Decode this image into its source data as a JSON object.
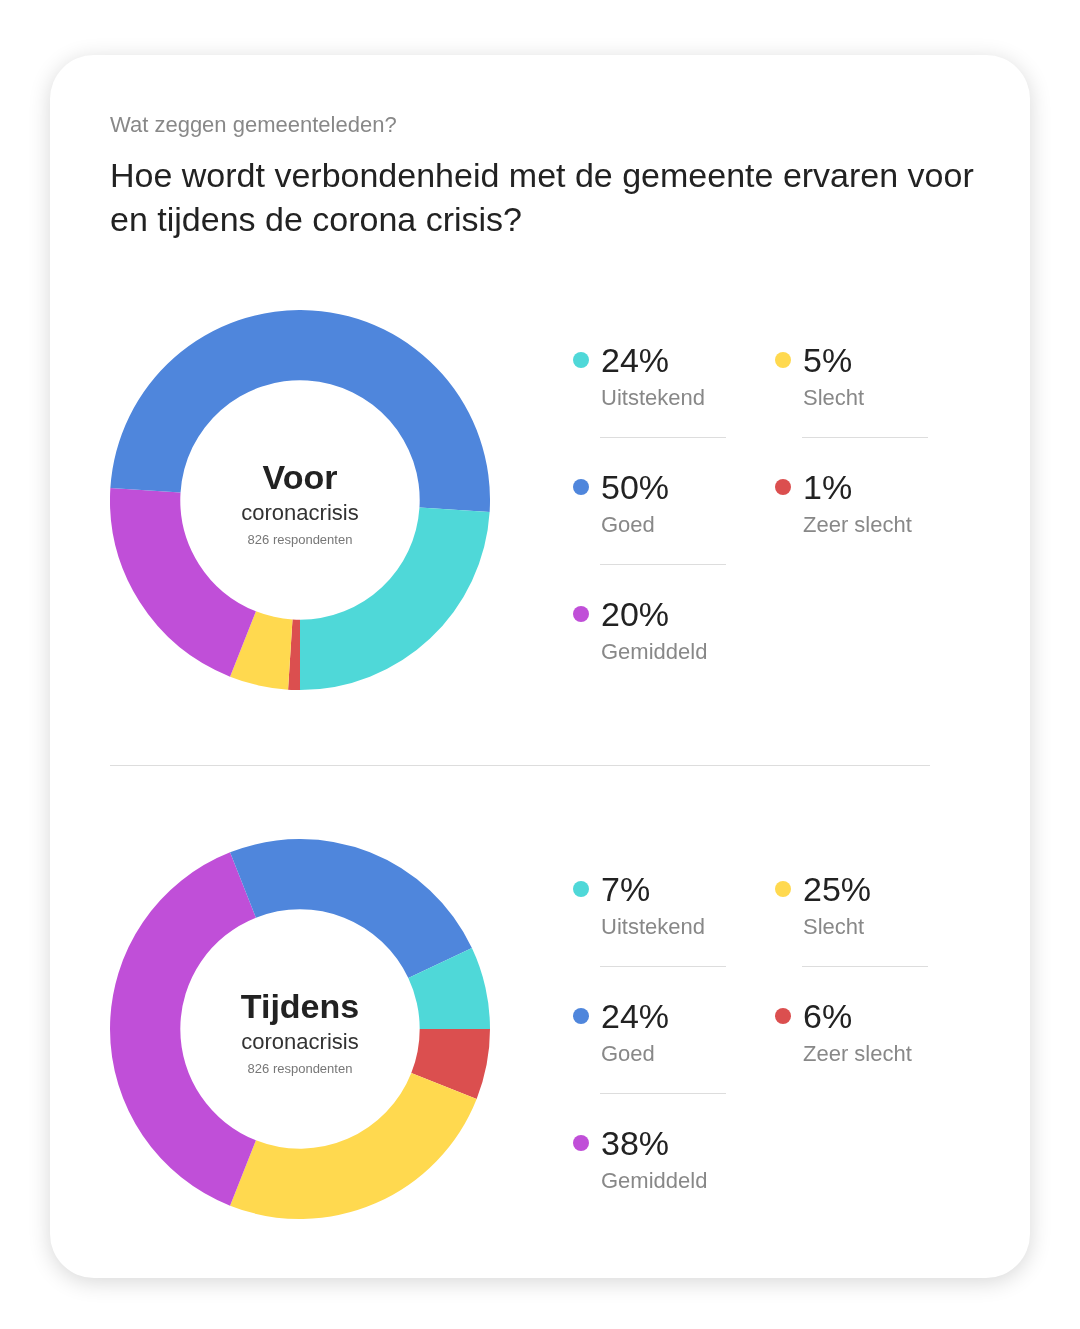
{
  "chart_data": [
    {
      "type": "donut",
      "title": "Hoe wordt verbondenheid met de gemeente ervaren voor en tijdens de corona crisis?",
      "subtitle": "Wat zeggen gemeenteleden?",
      "annotations": [
        "Voor",
        "coronacrisis",
        "826 respondenten"
      ],
      "legend": "right",
      "categories": [
        "Uitstekend",
        "Goed",
        "Gemiddeld",
        "Slecht",
        "Zeer slecht"
      ],
      "values": [
        24,
        50,
        20,
        5,
        1
      ],
      "value_labels": [
        "24%",
        "50%",
        "20%",
        "5%",
        "1%"
      ],
      "colors": [
        "#4fd8d8",
        "#4f86dc",
        "#c04fd8",
        "#ffd94f",
        "#db4f4f"
      ]
    },
    {
      "type": "donut",
      "annotations": [
        "Tijdens",
        "coronacrisis",
        "826 respondenten"
      ],
      "legend": "right",
      "categories": [
        "Uitstekend",
        "Goed",
        "Gemiddeld",
        "Slecht",
        "Zeer slecht"
      ],
      "values": [
        7,
        24,
        38,
        25,
        6
      ],
      "value_labels": [
        "7%",
        "24%",
        "38%",
        "25%",
        "6%"
      ],
      "colors": [
        "#4fd8d8",
        "#4f86dc",
        "#c04fd8",
        "#ffd94f",
        "#db4f4f"
      ]
    }
  ]
}
